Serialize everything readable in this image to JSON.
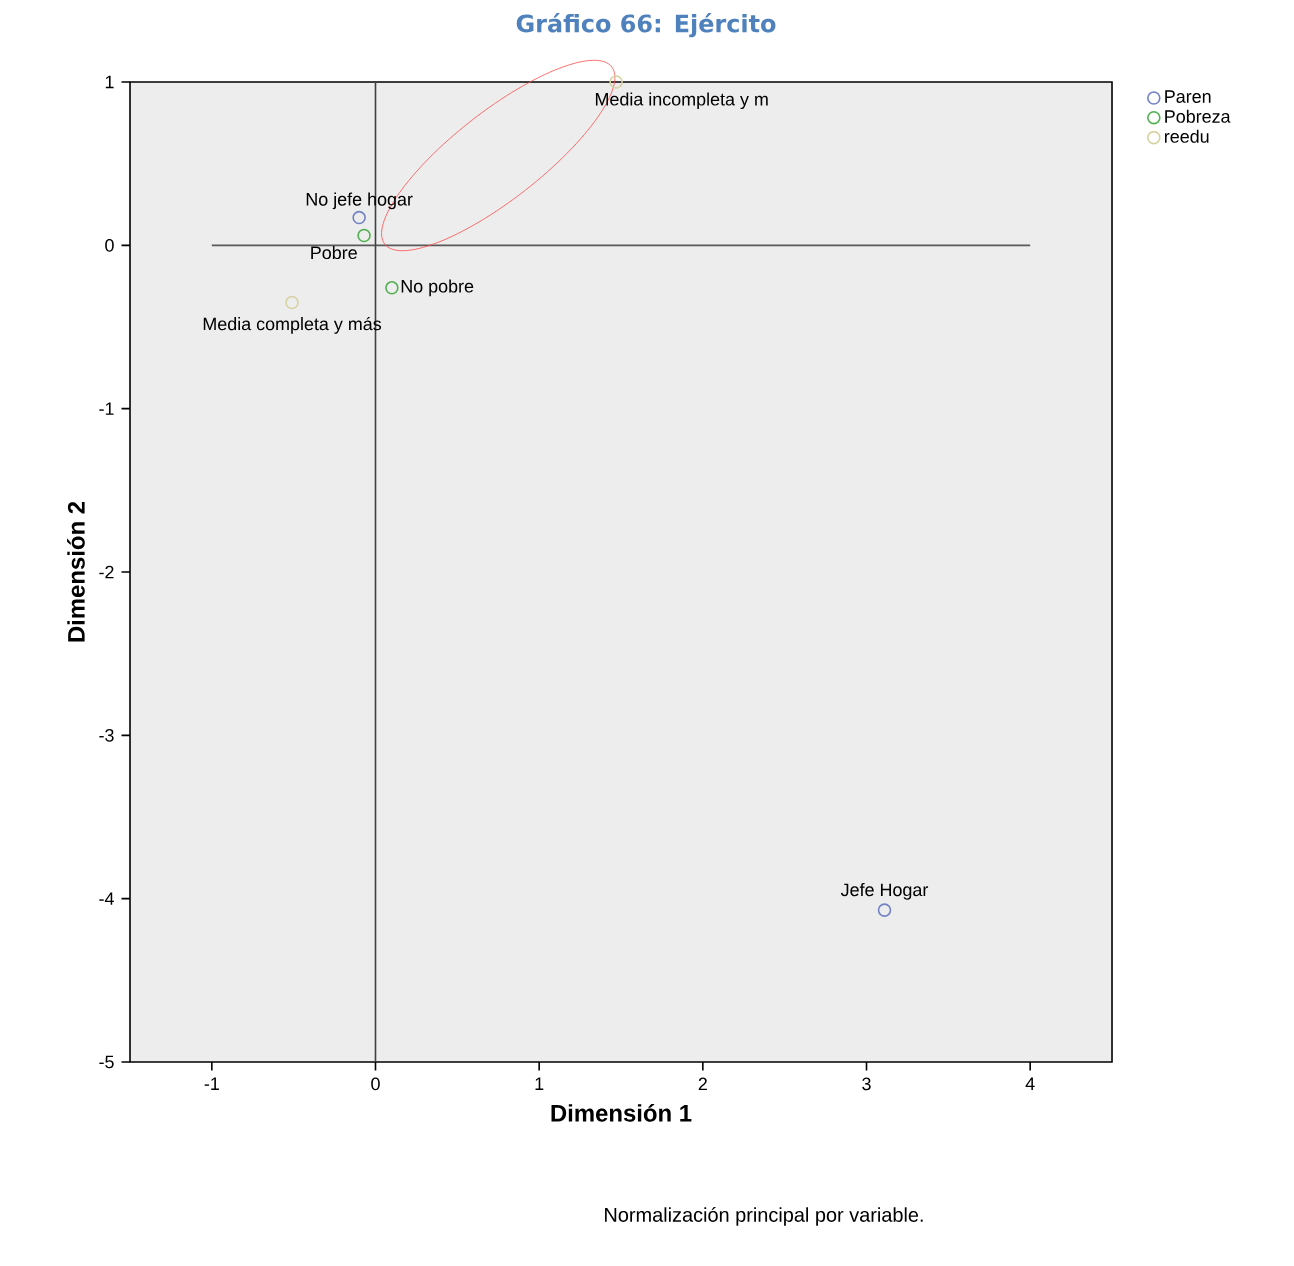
{
  "chart_data": {
    "type": "scatter",
    "title": "Gráfico 66: Ejército",
    "xlabel": "Dimensión 1",
    "ylabel": "Dimensión 2",
    "xlim": [
      -1.5,
      4.5
    ],
    "ylim": [
      -5,
      1
    ],
    "xticks": [
      -1,
      0,
      1,
      2,
      3,
      4
    ],
    "yticks": [
      -5,
      -4,
      -3,
      -2,
      -1,
      0,
      1
    ],
    "marker": "circle",
    "legend": "top right",
    "grid": false,
    "series": [
      {
        "name": "Paren",
        "color": "#7282c4",
        "x": [
          -0.1,
          3.11
        ],
        "values": [
          0.17,
          -4.07
        ]
      },
      {
        "name": "Pobreza",
        "color": "#4fb050",
        "x": [
          -0.07,
          0.1
        ],
        "values": [
          0.06,
          -0.26
        ]
      },
      {
        "name": "reedu",
        "color": "#d6d2a2",
        "x": [
          -0.51,
          1.47
        ],
        "values": [
          -0.35,
          1.0
        ]
      }
    ],
    "ref_lines": [
      {
        "axis": "y",
        "value": 0
      },
      {
        "axis": "x",
        "value": 0
      }
    ],
    "annotations": [
      {
        "text": "No jefe hogar",
        "x": -0.1,
        "y": 0.17
      },
      {
        "text": "Jefe Hogar",
        "x": 3.11,
        "y": -4.07
      },
      {
        "text": "Pobre",
        "x": -0.07,
        "y": 0.06
      },
      {
        "text": "No pobre",
        "x": 0.1,
        "y": -0.26
      },
      {
        "text": "Media completa y más",
        "x": -0.51,
        "y": -0.35
      },
      {
        "text": "Media incompleta y m",
        "x": 1.47,
        "y": 1.0
      },
      "Normalización principal por variable."
    ]
  }
}
